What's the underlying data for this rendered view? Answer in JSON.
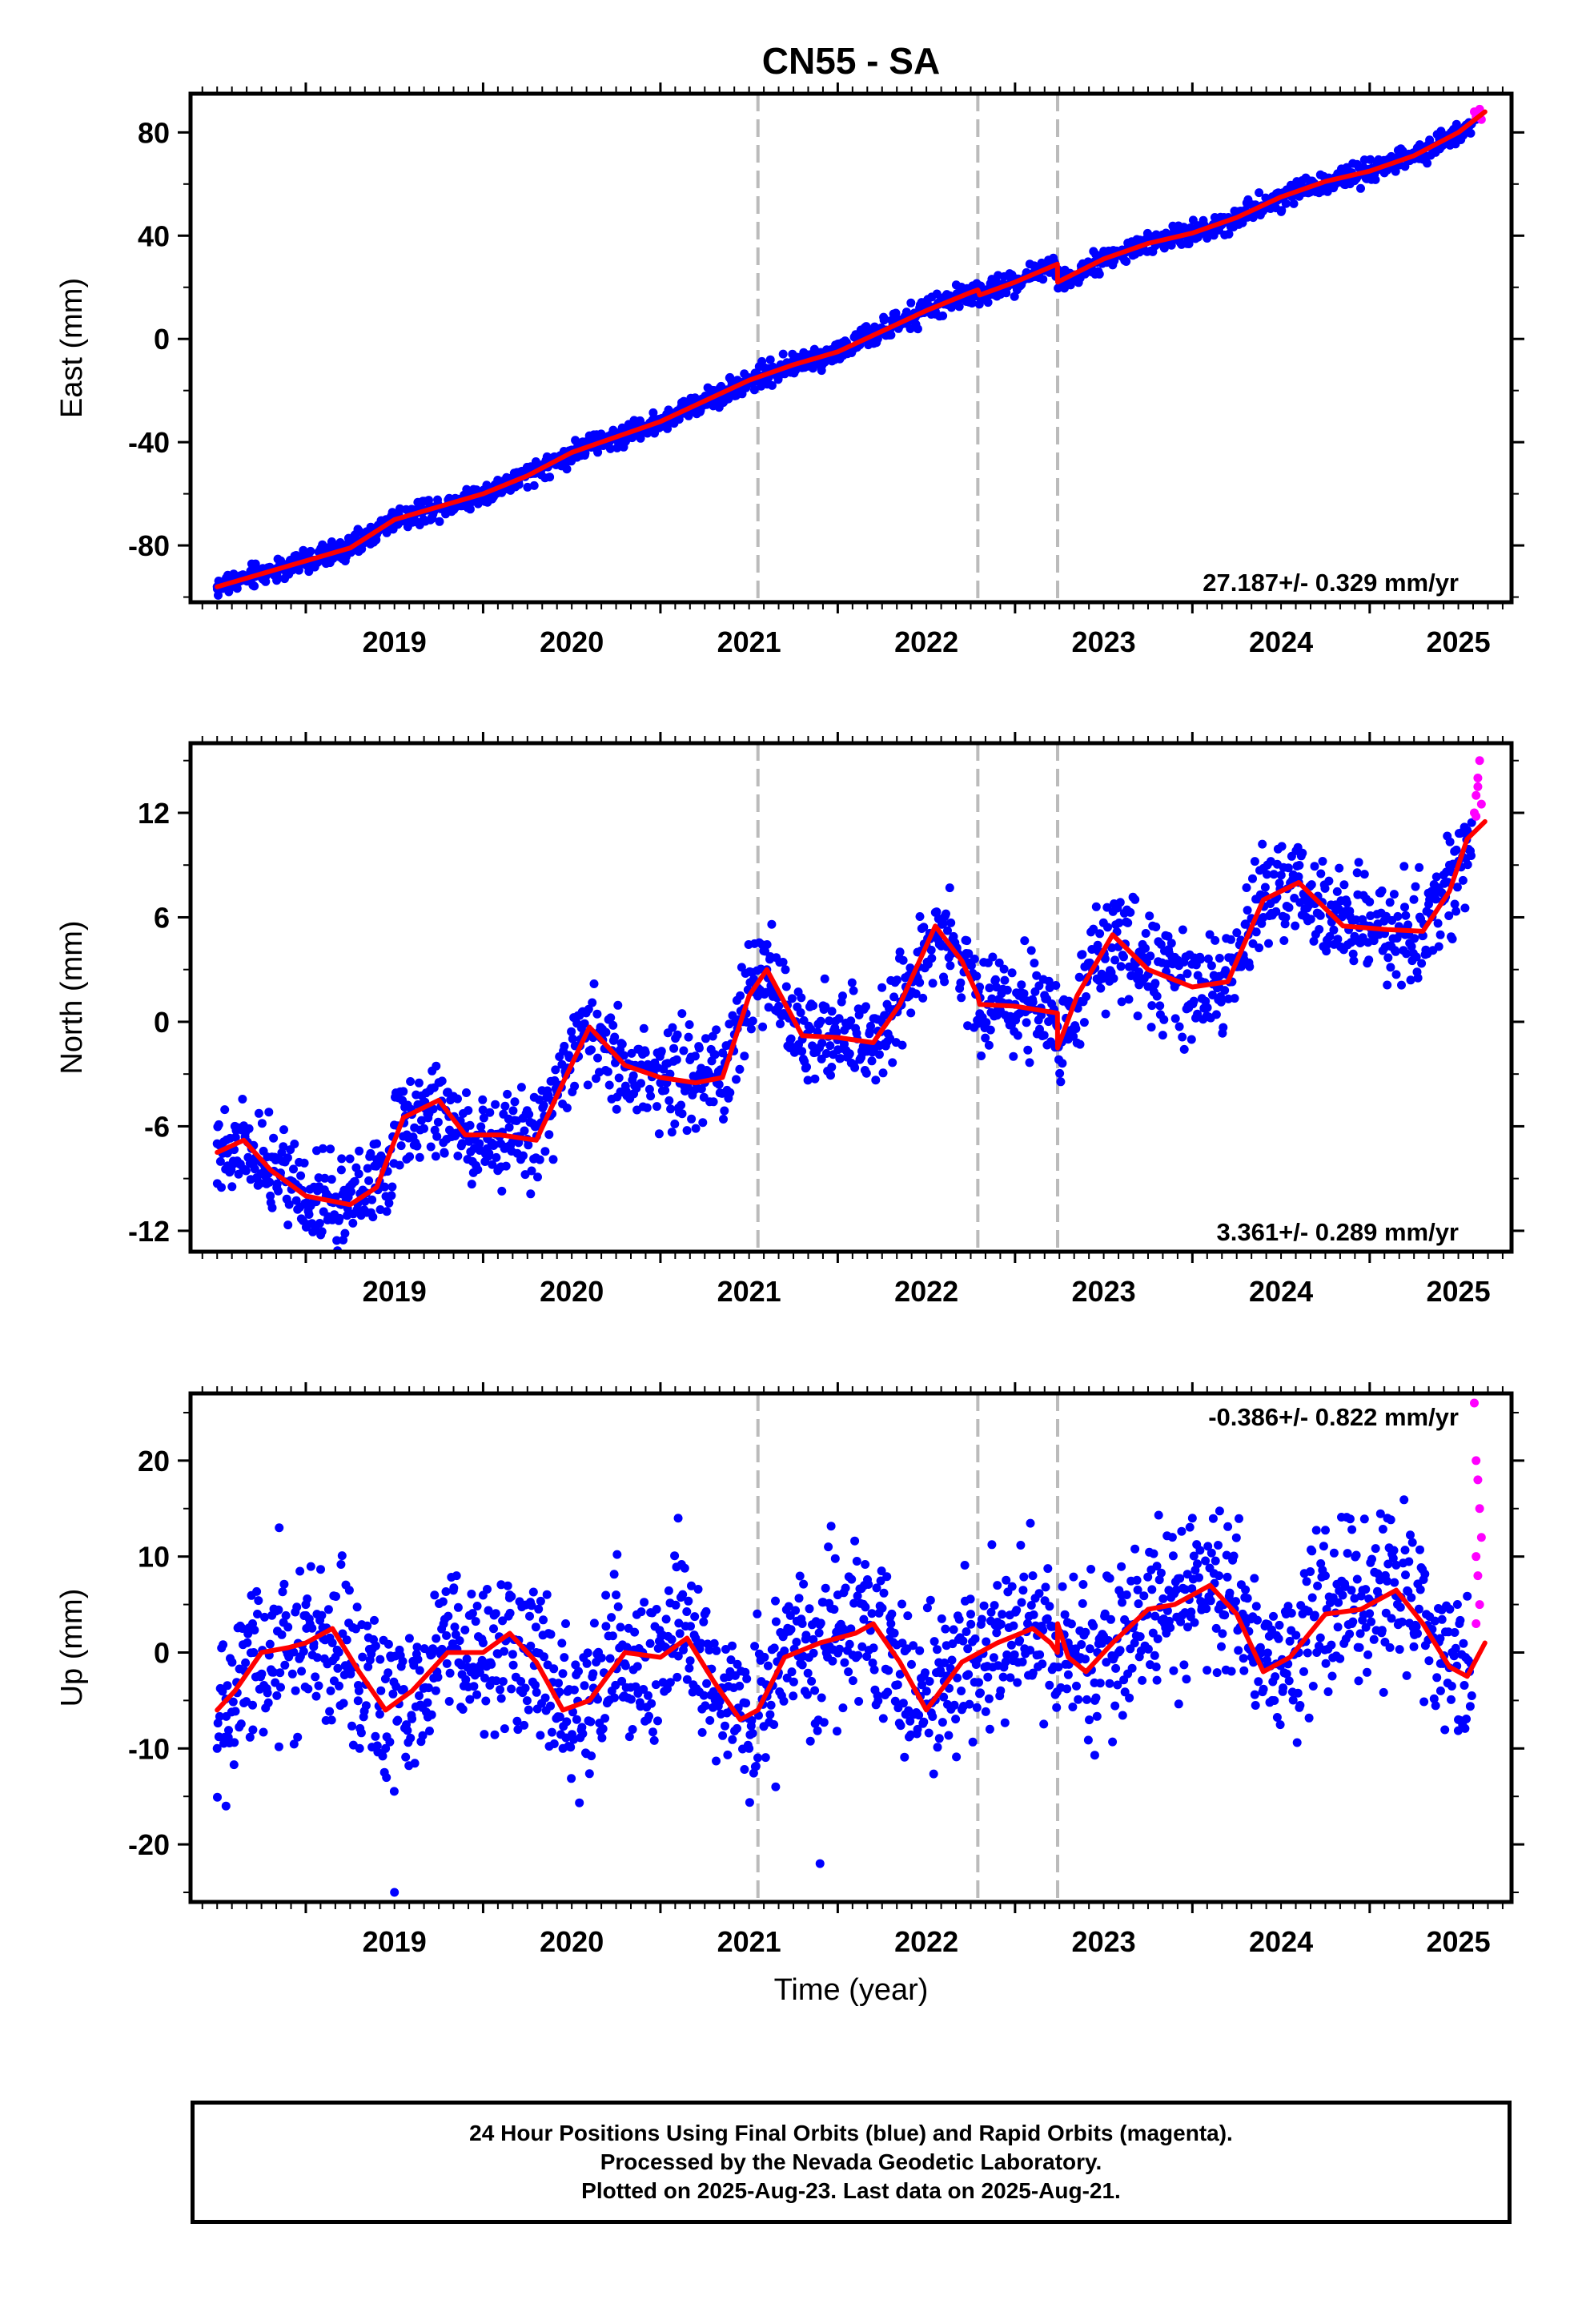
{
  "title": "CN55 - SA",
  "caption": {
    "line1": "24 Hour Positions Using Final Orbits (blue) and Rapid Orbits (magenta).",
    "line2": "Processed by the Nevada Geodetic Laboratory.",
    "line3": "Plotted on 2025-Aug-23. Last data on 2025-Aug-21."
  },
  "colors": {
    "final_orbits": "#0000ff",
    "rapid_orbits": "#ff00ff",
    "model_fit": "#ff0000",
    "event_lines": "#bbbbbb",
    "frame": "#000000"
  },
  "chart_data": [
    {
      "type": "scatter",
      "title": "CN55 - SA",
      "ylabel": "East (mm)",
      "xlabel": "",
      "xlim": [
        2018.35,
        2025.8
      ],
      "ylim": [
        -102,
        95
      ],
      "xticks": [
        2019,
        2020,
        2021,
        2022,
        2023,
        2024,
        2025
      ],
      "yticks": [
        -80,
        -40,
        0,
        40,
        80
      ],
      "rate_label": "27.187+/- 0.329 mm/yr",
      "rate_label_position": "bottom-right",
      "grid": false,
      "event_lines_x": [
        2021.55,
        2022.79,
        2023.24
      ],
      "series": [
        {
          "name": "Final Orbits (blue)",
          "style": "dots",
          "x": [
            2018.5,
            2018.75,
            2019.0,
            2019.25,
            2019.5,
            2019.75,
            2020.0,
            2020.25,
            2020.5,
            2020.75,
            2021.0,
            2021.25,
            2021.5,
            2021.75,
            2022.0,
            2022.25,
            2022.5,
            2022.75,
            2022.9,
            2023.1,
            2023.24,
            2023.5,
            2023.75,
            2024.0,
            2024.25,
            2024.5,
            2024.75,
            2025.0,
            2025.25,
            2025.5,
            2025.6
          ],
          "y": [
            -96,
            -91,
            -86,
            -80,
            -70,
            -65,
            -60,
            -52,
            -43,
            -37,
            -31,
            -23,
            -15,
            -9,
            -4,
            4,
            12,
            18,
            18,
            24,
            27,
            34,
            38,
            41,
            48,
            56,
            61,
            65,
            72,
            80,
            85
          ]
        },
        {
          "name": "Rapid Orbits (magenta)",
          "style": "dots",
          "x": [
            2025.59,
            2025.6,
            2025.61,
            2025.62,
            2025.63
          ],
          "y": [
            88,
            86,
            87,
            89,
            85
          ]
        },
        {
          "name": "Model fit",
          "style": "line",
          "x": [
            2018.5,
            2018.75,
            2019.0,
            2019.25,
            2019.5,
            2019.75,
            2020.0,
            2020.25,
            2020.5,
            2020.75,
            2021.0,
            2021.25,
            2021.5,
            2021.75,
            2022.0,
            2022.25,
            2022.5,
            2022.75,
            2022.79,
            2022.8,
            2023.0,
            2023.239,
            2023.24,
            2023.5,
            2023.75,
            2024.0,
            2024.25,
            2024.5,
            2024.75,
            2025.0,
            2025.25,
            2025.5,
            2025.65
          ],
          "y": [
            -96,
            -91,
            -86,
            -81,
            -70,
            -65,
            -60,
            -53,
            -44,
            -38,
            -32,
            -24,
            -16,
            -10,
            -5,
            3,
            11,
            18,
            19,
            17,
            22,
            29,
            22,
            31,
            37,
            41,
            47,
            55,
            61,
            65,
            71,
            80,
            88
          ]
        }
      ]
    },
    {
      "type": "scatter",
      "ylabel": "North (mm)",
      "xlabel": "",
      "xlim": [
        2018.35,
        2025.8
      ],
      "ylim": [
        -13.2,
        16
      ],
      "xticks": [
        2019,
        2020,
        2021,
        2022,
        2023,
        2024,
        2025
      ],
      "yticks": [
        -12,
        -6,
        0,
        6,
        12
      ],
      "rate_label": "3.361+/- 0.289 mm/yr",
      "rate_label_position": "bottom-right",
      "grid": false,
      "event_lines_x": [
        2021.55,
        2022.79,
        2023.24
      ],
      "series": [
        {
          "name": "Final Orbits (blue)",
          "style": "dots",
          "x": [
            2018.5,
            2018.6,
            2018.7,
            2018.8,
            2019.0,
            2019.2,
            2019.4,
            2019.55,
            2019.7,
            2019.9,
            2020.1,
            2020.3,
            2020.55,
            2020.75,
            2021.0,
            2021.2,
            2021.45,
            2021.6,
            2021.8,
            2022.0,
            2022.2,
            2022.45,
            2022.6,
            2022.8,
            2023.0,
            2023.2,
            2023.3,
            2023.5,
            2023.7,
            2023.9,
            2024.15,
            2024.4,
            2024.6,
            2024.8,
            2025.0,
            2025.2,
            2025.45,
            2025.55
          ],
          "y": [
            -7,
            -6,
            -8,
            -10,
            -10.5,
            -10.5,
            -7,
            -4,
            -5,
            -6.5,
            -7,
            -6,
            -1,
            -2,
            -3.5,
            -3.5,
            1.5,
            3,
            -1,
            -1,
            -1.5,
            4,
            6,
            2,
            1,
            0.5,
            -1,
            4,
            4,
            2,
            2,
            6,
            8,
            6,
            5.5,
            5,
            9,
            11
          ]
        },
        {
          "name": "Rapid Orbits (magenta)",
          "style": "dots",
          "x": [
            2025.59,
            2025.6,
            2025.61,
            2025.62,
            2025.63,
            2025.6,
            2025.61
          ],
          "y": [
            12,
            13,
            14,
            15,
            12.5,
            11.8,
            13.5
          ]
        },
        {
          "name": "Model fit",
          "style": "line",
          "x": [
            2018.5,
            2018.65,
            2018.8,
            2019.0,
            2019.25,
            2019.4,
            2019.55,
            2019.75,
            2019.9,
            2020.1,
            2020.3,
            2020.45,
            2020.6,
            2020.8,
            2021.0,
            2021.2,
            2021.35,
            2021.5,
            2021.6,
            2021.8,
            2022.0,
            2022.2,
            2022.35,
            2022.55,
            2022.7,
            2022.79,
            2022.8,
            2023.0,
            2023.239,
            2023.24,
            2023.35,
            2023.55,
            2023.75,
            2024.0,
            2024.2,
            2024.4,
            2024.6,
            2024.85,
            2025.1,
            2025.3,
            2025.45,
            2025.55,
            2025.65
          ],
          "y": [
            -7.5,
            -6.8,
            -8.5,
            -10,
            -10.5,
            -9.5,
            -5.5,
            -4.5,
            -6.5,
            -6.5,
            -6.8,
            -3.5,
            -0.3,
            -2.5,
            -3.2,
            -3.5,
            -3.2,
            1.5,
            3,
            -0.8,
            -0.9,
            -1.2,
            1,
            5.5,
            3.5,
            1.5,
            1,
            0.9,
            0.5,
            -1.5,
            1.5,
            5,
            3,
            2,
            2.3,
            7,
            8,
            5.5,
            5.3,
            5.2,
            7.5,
            10.5,
            11.5
          ]
        }
      ]
    },
    {
      "type": "scatter",
      "ylabel": "Up (mm)",
      "xlabel": "Time (year)",
      "xlim": [
        2018.35,
        2025.8
      ],
      "ylim": [
        -26,
        27
      ],
      "xticks": [
        2019,
        2020,
        2021,
        2022,
        2023,
        2024,
        2025
      ],
      "yticks": [
        -20,
        -10,
        0,
        10,
        20
      ],
      "rate_label": "-0.386+/- 0.822 mm/yr",
      "rate_label_position": "top-right",
      "grid": false,
      "event_lines_x": [
        2021.55,
        2022.79,
        2023.24
      ],
      "series": [
        {
          "name": "Final Orbits (blue)",
          "style": "dots",
          "x": [
            2018.5,
            2018.55,
            2018.7,
            2018.85,
            2019.0,
            2019.15,
            2019.3,
            2019.45,
            2019.5,
            2019.7,
            2019.85,
            2020.0,
            2020.15,
            2020.3,
            2020.45,
            2020.6,
            2020.75,
            2020.9,
            2021.1,
            2021.25,
            2021.4,
            2021.5,
            2021.65,
            2021.8,
            2021.9,
            2022.0,
            2022.15,
            2022.3,
            2022.45,
            2022.6,
            2022.75,
            2022.9,
            2023.1,
            2023.3,
            2023.45,
            2023.6,
            2023.8,
            2024.0,
            2024.15,
            2024.3,
            2024.45,
            2024.6,
            2024.75,
            2024.9,
            2025.1,
            2025.25,
            2025.4,
            2025.5
          ],
          "y": [
            -10,
            -16,
            3,
            13,
            5,
            1,
            -4,
            -10,
            -25,
            0,
            8,
            1,
            6,
            0,
            -10,
            -5,
            6,
            0,
            14,
            4,
            -6,
            -10,
            -14,
            3,
            -22,
            6,
            7,
            3,
            -8,
            -3,
            4,
            7,
            8,
            1,
            -5,
            6,
            9,
            14,
            8,
            3,
            -5,
            0,
            8,
            3,
            14,
            2,
            -4,
            -7
          ]
        },
        {
          "name": "Rapid Orbits (magenta)",
          "style": "dots",
          "x": [
            2025.59,
            2025.6,
            2025.61,
            2025.62,
            2025.63,
            2025.6,
            2025.61,
            2025.62,
            2025.6
          ],
          "y": [
            26,
            20,
            18,
            15,
            12,
            10,
            8,
            5,
            3
          ]
        },
        {
          "name": "Model fit",
          "style": "line",
          "x": [
            2018.5,
            2018.6,
            2018.75,
            2018.9,
            2019.0,
            2019.15,
            2019.3,
            2019.45,
            2019.6,
            2019.8,
            2020.0,
            2020.15,
            2020.3,
            2020.45,
            2020.6,
            2020.8,
            2021.0,
            2021.15,
            2021.3,
            2021.45,
            2021.55,
            2021.7,
            2021.9,
            2022.1,
            2022.2,
            2022.35,
            2022.5,
            2022.7,
            2022.9,
            2023.1,
            2023.2,
            2023.239,
            2023.24,
            2023.3,
            2023.4,
            2023.55,
            2023.75,
            2023.9,
            2024.1,
            2024.25,
            2024.4,
            2024.55,
            2024.75,
            2024.95,
            2025.15,
            2025.3,
            2025.45,
            2025.55,
            2025.65
          ],
          "y": [
            -6,
            -4,
            0,
            0.5,
            1,
            2.5,
            -2,
            -6,
            -4,
            0,
            0,
            2,
            -1,
            -6,
            -5,
            0,
            -0.5,
            1.5,
            -3,
            -7,
            -6,
            -0.5,
            1,
            2,
            3,
            -1,
            -6,
            -1,
            1,
            2.5,
            1,
            0,
            3,
            -0.5,
            -2,
            1,
            4.5,
            5,
            7,
            4,
            -2,
            -0.5,
            4,
            4.5,
            6.5,
            3,
            -1.5,
            -2.5,
            1
          ]
        }
      ]
    }
  ]
}
